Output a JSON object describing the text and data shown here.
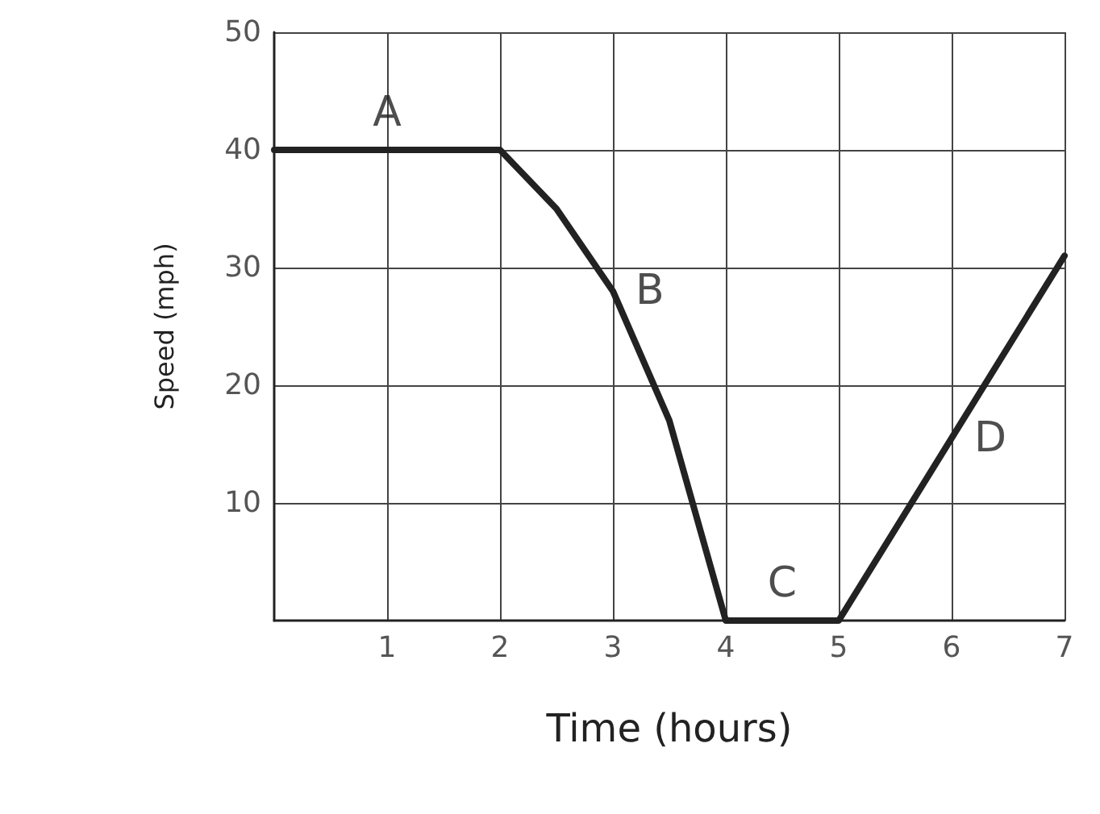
{
  "chart_data": {
    "type": "line",
    "xlabel": "Time (hours)",
    "ylabel": "Speed (mph)",
    "x": [
      0,
      1,
      2,
      2.5,
      3,
      3.5,
      4,
      4.5,
      5,
      6,
      7
    ],
    "series": [
      {
        "color": "#222222",
        "values": [
          40,
          40,
          40,
          35,
          28,
          17,
          0,
          0,
          0,
          15.5,
          31
        ]
      }
    ],
    "xlim": [
      0,
      7
    ],
    "ylim": [
      0,
      50
    ],
    "xticks": [
      1,
      2,
      3,
      4,
      5,
      6,
      7
    ],
    "yticks": [
      10,
      20,
      30,
      40,
      50
    ],
    "grid": true,
    "marker": "none",
    "line_style": "solid",
    "annotations": [
      {
        "text": "A",
        "x": 1,
        "y": 40
      },
      {
        "text": "B",
        "x": 3,
        "y": 28
      },
      {
        "text": "C",
        "x": 4.5,
        "y": 0
      },
      {
        "text": "D",
        "x": 6,
        "y": 15.5
      }
    ]
  }
}
